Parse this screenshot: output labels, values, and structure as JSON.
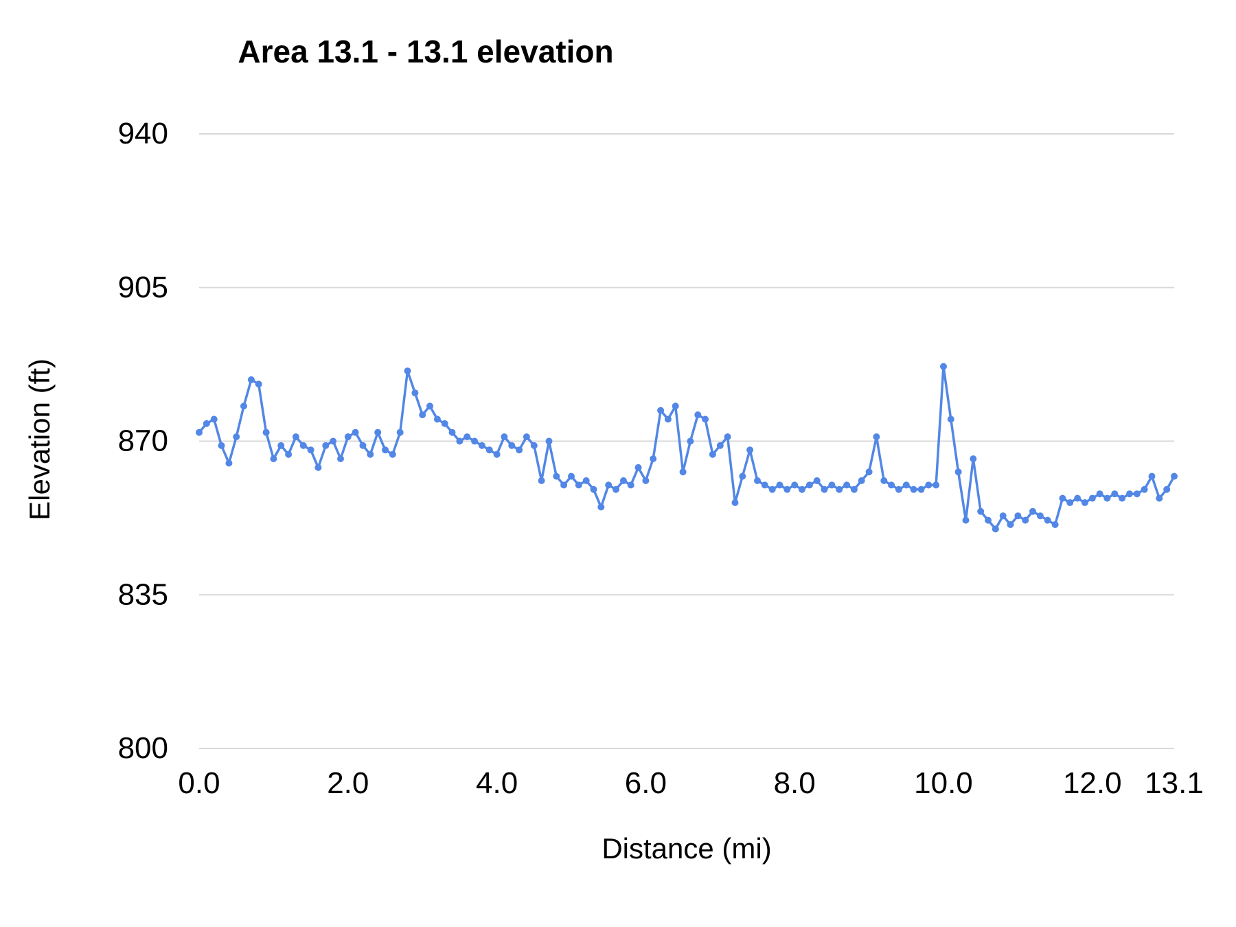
{
  "chart_data": {
    "type": "line",
    "title": "Area 13.1 - 13.1 elevation",
    "xlabel": "Distance (mi)",
    "ylabel": "Elevation (ft)",
    "line_color": "#5287e6",
    "grid_color": "#d9d9d9",
    "show_markers": true,
    "grid": true,
    "legend_position": "none",
    "xlim": [
      0,
      13.1
    ],
    "ylim": [
      800,
      940
    ],
    "y_ticks": [
      800,
      835,
      870,
      905,
      940
    ],
    "x_ticks": [
      0.0,
      2.0,
      4.0,
      6.0,
      8.0,
      10.0,
      12.0,
      13.1
    ],
    "x_tick_labels": [
      "0.0",
      "2.0",
      "4.0",
      "6.0",
      "8.0",
      "10.0",
      "12.0",
      "13.1"
    ],
    "series": [
      {
        "name": "elevation",
        "x": [
          0.0,
          0.1,
          0.2,
          0.3,
          0.4,
          0.5,
          0.6,
          0.7,
          0.8,
          0.9,
          1.0,
          1.1,
          1.2,
          1.3,
          1.4,
          1.5,
          1.6,
          1.7,
          1.8,
          1.9,
          2.0,
          2.1,
          2.2,
          2.3,
          2.4,
          2.5,
          2.6,
          2.7,
          2.8,
          2.9,
          3.0,
          3.1,
          3.2,
          3.3,
          3.4,
          3.5,
          3.6,
          3.7,
          3.8,
          3.9,
          4.0,
          4.1,
          4.2,
          4.3,
          4.4,
          4.5,
          4.6,
          4.7,
          4.8,
          4.9,
          5.0,
          5.1,
          5.2,
          5.3,
          5.4,
          5.5,
          5.6,
          5.7,
          5.8,
          5.9,
          6.0,
          6.1,
          6.2,
          6.3,
          6.4,
          6.5,
          6.6,
          6.7,
          6.8,
          6.9,
          7.0,
          7.1,
          7.2,
          7.3,
          7.4,
          7.5,
          7.6,
          7.7,
          7.8,
          7.9,
          8.0,
          8.1,
          8.2,
          8.3,
          8.4,
          8.5,
          8.6,
          8.7,
          8.8,
          8.9,
          9.0,
          9.1,
          9.2,
          9.3,
          9.4,
          9.5,
          9.6,
          9.7,
          9.8,
          9.9,
          10.0,
          10.1,
          10.2,
          10.3,
          10.4,
          10.5,
          10.6,
          10.7,
          10.8,
          10.9,
          11.0,
          11.1,
          11.2,
          11.3,
          11.4,
          11.5,
          11.6,
          11.7,
          11.8,
          11.9,
          12.0,
          12.1,
          12.2,
          12.3,
          12.4,
          12.5,
          12.6,
          12.7,
          12.8,
          12.9,
          13.0,
          13.1
        ],
        "values": [
          872,
          874,
          875,
          869,
          865,
          871,
          878,
          884,
          883,
          872,
          866,
          869,
          867,
          871,
          869,
          868,
          864,
          869,
          870,
          866,
          871,
          872,
          869,
          867,
          872,
          868,
          867,
          872,
          886,
          881,
          876,
          878,
          875,
          874,
          872,
          870,
          871,
          870,
          869,
          868,
          867,
          871,
          869,
          868,
          871,
          869,
          861,
          870,
          862,
          860,
          862,
          860,
          861,
          859,
          855,
          860,
          859,
          861,
          860,
          864,
          861,
          866,
          877,
          875,
          878,
          863,
          870,
          876,
          875,
          867,
          869,
          871,
          856,
          862,
          868,
          861,
          860,
          859,
          860,
          859,
          860,
          859,
          860,
          861,
          859,
          860,
          859,
          860,
          859,
          861,
          863,
          871,
          861,
          860,
          859,
          860,
          859,
          859,
          860,
          860,
          887,
          875,
          863,
          852,
          866,
          854,
          852,
          850,
          853,
          851,
          853,
          852,
          854,
          853,
          852,
          851,
          857,
          856,
          857,
          856,
          857,
          858,
          857,
          858,
          857,
          858,
          858,
          859,
          862,
          857,
          859,
          862
        ]
      }
    ]
  }
}
